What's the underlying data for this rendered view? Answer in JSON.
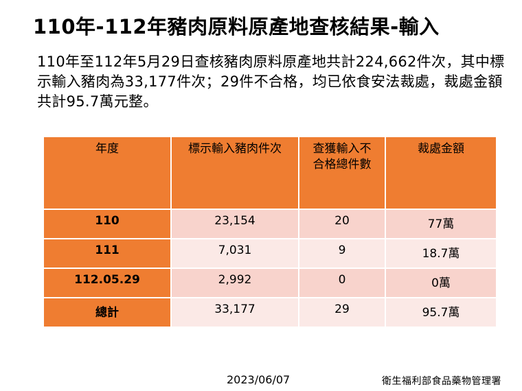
{
  "title": "110年-112年豬肉原料原產地查核結果-輸入",
  "summary": "110年至112年5月29日查核豬肉原料原產地共計224,662件次，其中標示輸入豬肉為33,177件次；29件不合格，均已依食安法裁處，裁處金額共計95.7萬元整。",
  "table": {
    "headers": [
      "年度",
      "標示輸入豬肉件次",
      "查獲輸入不合格總件數",
      "裁處金額"
    ],
    "rows": [
      [
        "110",
        "23,154",
        "20",
        "77萬"
      ],
      [
        "111",
        "7,031",
        "9",
        "18.7萬"
      ],
      [
        "112.05.29",
        "2,992",
        "0",
        "0萬"
      ],
      [
        "總計",
        "33,177",
        "29",
        "95.7萬"
      ]
    ]
  },
  "footer": {
    "date": "2023/06/07",
    "org": "衛生福利部食品藥物管理署"
  },
  "colors": {
    "header_orange": "#ef7d31",
    "row_dark": "#f8d3cc",
    "row_light": "#fbe9e6"
  }
}
